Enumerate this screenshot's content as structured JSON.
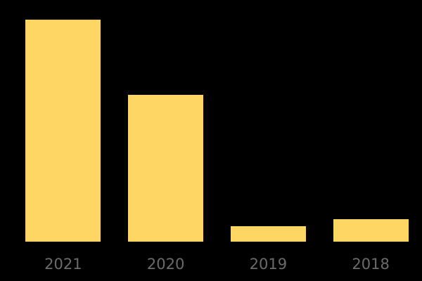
{
  "chart_data": {
    "type": "bar",
    "categories": [
      "2021",
      "2020",
      "2019",
      "2018"
    ],
    "values": [
      100,
      66,
      7,
      10
    ],
    "title": "",
    "xlabel": "",
    "ylabel": "",
    "ylim": [
      0,
      100
    ],
    "grid": false,
    "legend": false,
    "axes_visible": false,
    "colors": {
      "background": "#000000",
      "bar": "#FDD663",
      "tick_label": "#6B6B6B"
    }
  }
}
